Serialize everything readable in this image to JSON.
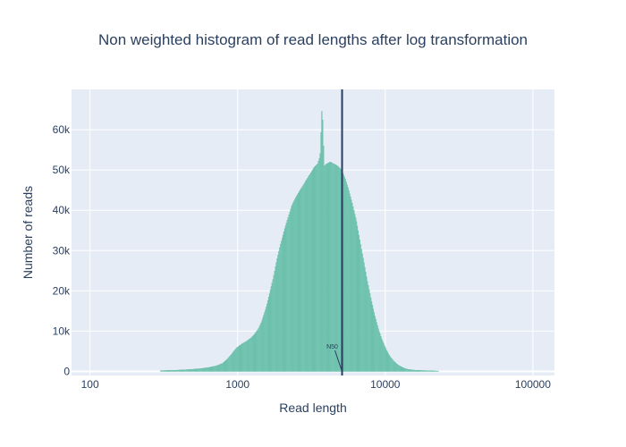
{
  "chart_data": {
    "type": "bar",
    "title": "Non weighted histogram of read lengths after log transformation",
    "xlabel": "Read length",
    "ylabel": "Number of reads",
    "x_scale": "log",
    "xlim": [
      75,
      140000
    ],
    "ylim": [
      -1000,
      70000
    ],
    "x_ticks": [
      100,
      1000,
      10000,
      100000
    ],
    "x_tick_labels": [
      "100",
      "1000",
      "10000",
      "100000"
    ],
    "y_ticks": [
      0,
      10000,
      20000,
      30000,
      40000,
      50000,
      60000
    ],
    "y_tick_labels": [
      "0",
      "10k",
      "20k",
      "30k",
      "40k",
      "50k",
      "60k"
    ],
    "grid": true,
    "legend": "none",
    "bar_color": "#7fcdbb",
    "bar_outline_color": "#4fae95",
    "line_color": "#2a3f5f",
    "vertical_line_x": 5100,
    "annotation": {
      "text": "N50",
      "x": 5100,
      "y": 0
    },
    "bins": [
      {
        "x": 300,
        "y": 200
      },
      {
        "x": 380,
        "y": 300
      },
      {
        "x": 480,
        "y": 500
      },
      {
        "x": 560,
        "y": 700
      },
      {
        "x": 640,
        "y": 1000
      },
      {
        "x": 720,
        "y": 1400
      },
      {
        "x": 790,
        "y": 2000
      },
      {
        "x": 850,
        "y": 3000
      },
      {
        "x": 920,
        "y": 4500
      },
      {
        "x": 980,
        "y": 5800
      },
      {
        "x": 1030,
        "y": 6400
      },
      {
        "x": 1090,
        "y": 7000
      },
      {
        "x": 1160,
        "y": 7600
      },
      {
        "x": 1230,
        "y": 8300
      },
      {
        "x": 1300,
        "y": 9200
      },
      {
        "x": 1380,
        "y": 10500
      },
      {
        "x": 1460,
        "y": 12500
      },
      {
        "x": 1550,
        "y": 15500
      },
      {
        "x": 1640,
        "y": 19000
      },
      {
        "x": 1740,
        "y": 23000
      },
      {
        "x": 1840,
        "y": 27500
      },
      {
        "x": 1950,
        "y": 31500
      },
      {
        "x": 2070,
        "y": 35000
      },
      {
        "x": 2190,
        "y": 38000
      },
      {
        "x": 2320,
        "y": 41000
      },
      {
        "x": 2460,
        "y": 43000
      },
      {
        "x": 2600,
        "y": 44500
      },
      {
        "x": 2760,
        "y": 46000
      },
      {
        "x": 2920,
        "y": 47500
      },
      {
        "x": 3100,
        "y": 49000
      },
      {
        "x": 3280,
        "y": 50500
      },
      {
        "x": 3480,
        "y": 51500
      },
      {
        "x": 3620,
        "y": 53500
      },
      {
        "x": 3740,
        "y": 66500
      },
      {
        "x": 3860,
        "y": 51000
      },
      {
        "x": 4000,
        "y": 51500
      },
      {
        "x": 4240,
        "y": 52000
      },
      {
        "x": 4500,
        "y": 51500
      },
      {
        "x": 4760,
        "y": 51000
      },
      {
        "x": 5050,
        "y": 50000
      },
      {
        "x": 5350,
        "y": 48000
      },
      {
        "x": 5660,
        "y": 45000
      },
      {
        "x": 6000,
        "y": 41500
      },
      {
        "x": 6360,
        "y": 37500
      },
      {
        "x": 6740,
        "y": 32500
      },
      {
        "x": 7140,
        "y": 27500
      },
      {
        "x": 7560,
        "y": 22500
      },
      {
        "x": 8010,
        "y": 18000
      },
      {
        "x": 8490,
        "y": 14000
      },
      {
        "x": 9000,
        "y": 10500
      },
      {
        "x": 9530,
        "y": 7800
      },
      {
        "x": 10100,
        "y": 5600
      },
      {
        "x": 10700,
        "y": 3900
      },
      {
        "x": 11340,
        "y": 2700
      },
      {
        "x": 12020,
        "y": 1800
      },
      {
        "x": 12740,
        "y": 1200
      },
      {
        "x": 13500,
        "y": 800
      },
      {
        "x": 14300,
        "y": 500
      },
      {
        "x": 16000,
        "y": 300
      },
      {
        "x": 19000,
        "y": 200
      },
      {
        "x": 23000,
        "y": 100
      }
    ]
  }
}
